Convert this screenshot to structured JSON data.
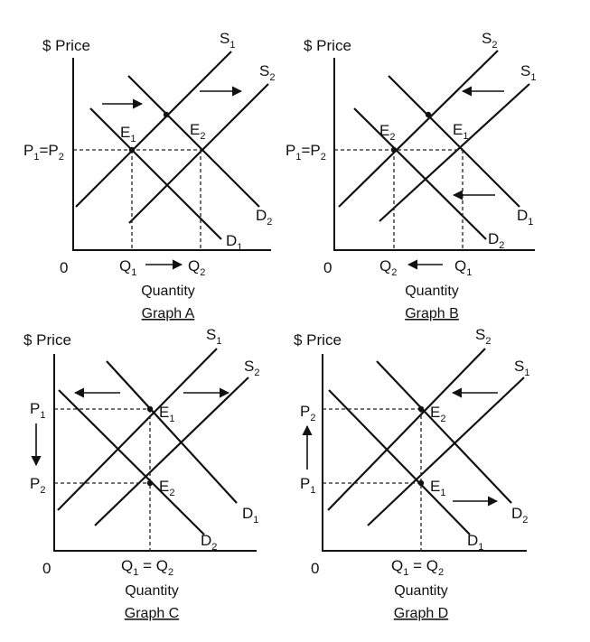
{
  "graphs": [
    {
      "id": "A",
      "y_axis_label": "$ Price",
      "origin_label": "0",
      "x_axis_label": "Quantity",
      "caption": "Graph A",
      "price_labels": [
        {
          "base": "P",
          "sub": "1",
          "mid": "=",
          "base2": "P",
          "sub2": "2"
        }
      ],
      "quantity_labels": [
        {
          "base": "Q",
          "sub": "1"
        },
        {
          "base": "Q",
          "sub": "2"
        }
      ],
      "curves": [
        {
          "kind": "supply",
          "base": "S",
          "sub": "1"
        },
        {
          "kind": "supply",
          "base": "S",
          "sub": "2"
        },
        {
          "kind": "demand",
          "base": "D",
          "sub": "1"
        },
        {
          "kind": "demand",
          "base": "D",
          "sub": "2"
        }
      ],
      "equilibria": [
        {
          "base": "E",
          "sub": "1"
        },
        {
          "base": "E",
          "sub": "2"
        }
      ],
      "shifts": [
        "supply-right",
        "demand-right",
        "quantity-increase"
      ]
    },
    {
      "id": "B",
      "y_axis_label": "$ Price",
      "origin_label": "0",
      "x_axis_label": "Quantity",
      "caption": "Graph B",
      "price_labels": [
        {
          "base": "P",
          "sub": "1",
          "mid": "=",
          "base2": "P",
          "sub2": "2"
        }
      ],
      "quantity_labels": [
        {
          "base": "Q",
          "sub": "2"
        },
        {
          "base": "Q",
          "sub": "1"
        }
      ],
      "curves": [
        {
          "kind": "supply",
          "base": "S",
          "sub": "2"
        },
        {
          "kind": "supply",
          "base": "S",
          "sub": "1"
        },
        {
          "kind": "demand",
          "base": "D",
          "sub": "1"
        },
        {
          "kind": "demand",
          "base": "D",
          "sub": "2"
        }
      ],
      "equilibria": [
        {
          "base": "E",
          "sub": "2"
        },
        {
          "base": "E",
          "sub": "1"
        }
      ],
      "shifts": [
        "supply-left",
        "demand-left",
        "quantity-decrease"
      ]
    },
    {
      "id": "C",
      "y_axis_label": "$ Price",
      "origin_label": "0",
      "x_axis_label": "Quantity",
      "caption": "Graph C",
      "price_labels": [
        {
          "base": "P",
          "sub": "1"
        },
        {
          "base": "P",
          "sub": "2"
        }
      ],
      "quantity_labels": [
        {
          "base": "Q",
          "sub": "1",
          "mid": " = ",
          "base2": "Q",
          "sub2": "2"
        }
      ],
      "curves": [
        {
          "kind": "supply",
          "base": "S",
          "sub": "1"
        },
        {
          "kind": "supply",
          "base": "S",
          "sub": "2"
        },
        {
          "kind": "demand",
          "base": "D",
          "sub": "1"
        },
        {
          "kind": "demand",
          "base": "D",
          "sub": "2"
        }
      ],
      "equilibria": [
        {
          "base": "E",
          "sub": "1"
        },
        {
          "base": "E",
          "sub": "2"
        }
      ],
      "shifts": [
        "supply-right",
        "demand-left",
        "price-decrease"
      ]
    },
    {
      "id": "D",
      "y_axis_label": "$ Price",
      "origin_label": "0",
      "x_axis_label": "Quantity",
      "caption": "Graph D",
      "price_labels": [
        {
          "base": "P",
          "sub": "2"
        },
        {
          "base": "P",
          "sub": "1"
        }
      ],
      "quantity_labels": [
        {
          "base": "Q",
          "sub": "1",
          "mid": " = ",
          "base2": "Q",
          "sub2": "2"
        }
      ],
      "curves": [
        {
          "kind": "supply",
          "base": "S",
          "sub": "2"
        },
        {
          "kind": "supply",
          "base": "S",
          "sub": "1"
        },
        {
          "kind": "demand",
          "base": "D",
          "sub": "2"
        },
        {
          "kind": "demand",
          "base": "D",
          "sub": "1"
        }
      ],
      "equilibria": [
        {
          "base": "E",
          "sub": "2"
        },
        {
          "base": "E",
          "sub": "1"
        }
      ],
      "shifts": [
        "supply-left",
        "demand-right",
        "price-increase"
      ]
    }
  ]
}
